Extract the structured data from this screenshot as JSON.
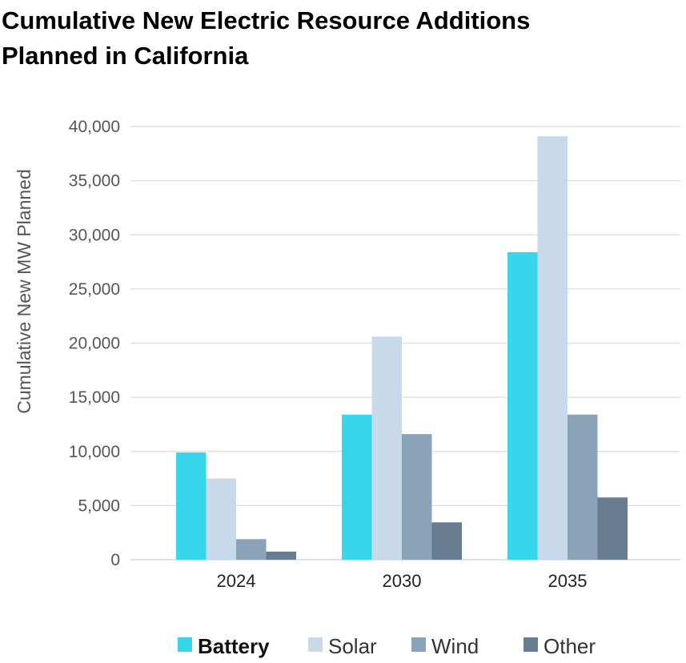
{
  "title_lines": [
    "Cumulative New Electric Resource Additions",
    "Planned in California"
  ],
  "chart_data": {
    "type": "bar",
    "title": "Cumulative New Electric Resource Additions Planned in California",
    "ylabel": "Cumulative New MW Planned",
    "xlabel": "",
    "categories": [
      "2024",
      "2030",
      "2035"
    ],
    "ylim": [
      0,
      40000
    ],
    "yticks": [
      "0",
      "5,000",
      "10,000",
      "15,000",
      "20,000",
      "25,000",
      "30,000",
      "35,000",
      "40,000"
    ],
    "ytick_values": [
      0,
      5000,
      10000,
      15000,
      20000,
      25000,
      30000,
      35000,
      40000
    ],
    "grid": true,
    "legend_position": "bottom",
    "series": [
      {
        "name": "Battery",
        "color": "#37D6EA",
        "values": [
          9900,
          13400,
          28400
        ],
        "legend_bold": true
      },
      {
        "name": "Solar",
        "color": "#C8D9E9",
        "values": [
          7500,
          20600,
          39100
        ],
        "legend_bold": false
      },
      {
        "name": "Wind",
        "color": "#8BA3B8",
        "values": [
          1900,
          11600,
          13400
        ],
        "legend_bold": false
      },
      {
        "name": "Other",
        "color": "#687D92",
        "values": [
          750,
          3450,
          5750
        ],
        "legend_bold": false
      }
    ]
  }
}
